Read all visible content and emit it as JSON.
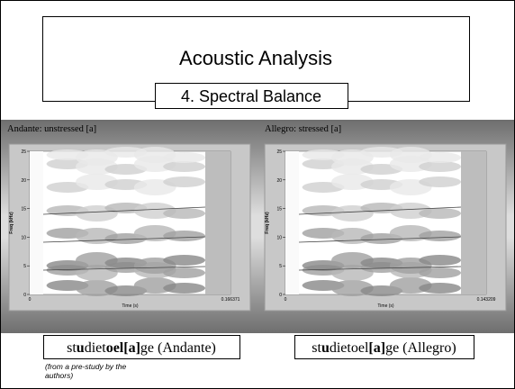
{
  "header": {
    "title": "Acoustic Analysis",
    "subtitle": "4. Spectral Balance"
  },
  "panels": [
    {
      "label": "Andante: unstressed [a]",
      "y_axis_title": "Freq (kHz)",
      "x_axis_title": "Time (s)",
      "yticks": [
        "25",
        "20",
        "15",
        "10",
        "5",
        "0"
      ],
      "xticks": [
        "0",
        "0.166371"
      ],
      "caption": [
        {
          "text": "st"
        },
        {
          "text": "u",
          "bold": true
        },
        {
          "text": "diet"
        },
        {
          "text": "oel",
          "bold": true
        },
        {
          "text": "[a]",
          "bold": true
        },
        {
          "text": "ge (Andante)"
        }
      ]
    },
    {
      "label": "Allegro: stressed [a]",
      "y_axis_title": "Freq (kHz)",
      "x_axis_title": "Time (s)",
      "yticks": [
        "25",
        "20",
        "15",
        "10",
        "5",
        "0"
      ],
      "xticks": [
        "0",
        "0.143209"
      ],
      "caption": [
        {
          "text": "st"
        },
        {
          "text": "u",
          "bold": true
        },
        {
          "text": "dietoel"
        },
        {
          "text": "[a]",
          "bold": true
        },
        {
          "text": "ge (Allegro)"
        }
      ]
    }
  ],
  "footnote": "(from a pre-study by the authors)"
}
